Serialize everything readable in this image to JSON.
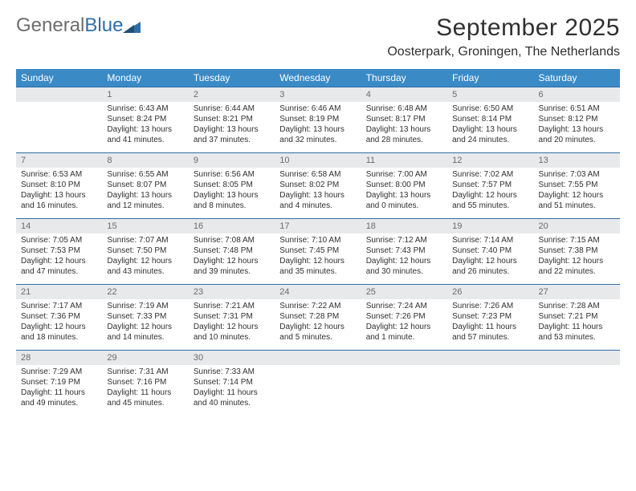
{
  "brand": {
    "name_gray": "General",
    "name_blue": "Blue"
  },
  "title": {
    "month": "September 2025",
    "location": "Oosterpark, Groningen, The Netherlands"
  },
  "colors": {
    "header_bg": "#3a8ac6",
    "header_text": "#ffffff",
    "daynum_bg": "#e7e9eb",
    "daynum_text": "#6b6b6b",
    "body_text": "#303030",
    "week_border": "#2f6fa7",
    "logo_gray": "#6d6d6d",
    "logo_blue": "#2f6fa7"
  },
  "calendar": {
    "day_headers": [
      "Sunday",
      "Monday",
      "Tuesday",
      "Wednesday",
      "Thursday",
      "Friday",
      "Saturday"
    ],
    "weeks": [
      [
        {
          "n": "",
          "sunrise": "",
          "sunset": "",
          "daylight": ""
        },
        {
          "n": "1",
          "sunrise": "Sunrise: 6:43 AM",
          "sunset": "Sunset: 8:24 PM",
          "daylight": "Daylight: 13 hours and 41 minutes."
        },
        {
          "n": "2",
          "sunrise": "Sunrise: 6:44 AM",
          "sunset": "Sunset: 8:21 PM",
          "daylight": "Daylight: 13 hours and 37 minutes."
        },
        {
          "n": "3",
          "sunrise": "Sunrise: 6:46 AM",
          "sunset": "Sunset: 8:19 PM",
          "daylight": "Daylight: 13 hours and 32 minutes."
        },
        {
          "n": "4",
          "sunrise": "Sunrise: 6:48 AM",
          "sunset": "Sunset: 8:17 PM",
          "daylight": "Daylight: 13 hours and 28 minutes."
        },
        {
          "n": "5",
          "sunrise": "Sunrise: 6:50 AM",
          "sunset": "Sunset: 8:14 PM",
          "daylight": "Daylight: 13 hours and 24 minutes."
        },
        {
          "n": "6",
          "sunrise": "Sunrise: 6:51 AM",
          "sunset": "Sunset: 8:12 PM",
          "daylight": "Daylight: 13 hours and 20 minutes."
        }
      ],
      [
        {
          "n": "7",
          "sunrise": "Sunrise: 6:53 AM",
          "sunset": "Sunset: 8:10 PM",
          "daylight": "Daylight: 13 hours and 16 minutes."
        },
        {
          "n": "8",
          "sunrise": "Sunrise: 6:55 AM",
          "sunset": "Sunset: 8:07 PM",
          "daylight": "Daylight: 13 hours and 12 minutes."
        },
        {
          "n": "9",
          "sunrise": "Sunrise: 6:56 AM",
          "sunset": "Sunset: 8:05 PM",
          "daylight": "Daylight: 13 hours and 8 minutes."
        },
        {
          "n": "10",
          "sunrise": "Sunrise: 6:58 AM",
          "sunset": "Sunset: 8:02 PM",
          "daylight": "Daylight: 13 hours and 4 minutes."
        },
        {
          "n": "11",
          "sunrise": "Sunrise: 7:00 AM",
          "sunset": "Sunset: 8:00 PM",
          "daylight": "Daylight: 13 hours and 0 minutes."
        },
        {
          "n": "12",
          "sunrise": "Sunrise: 7:02 AM",
          "sunset": "Sunset: 7:57 PM",
          "daylight": "Daylight: 12 hours and 55 minutes."
        },
        {
          "n": "13",
          "sunrise": "Sunrise: 7:03 AM",
          "sunset": "Sunset: 7:55 PM",
          "daylight": "Daylight: 12 hours and 51 minutes."
        }
      ],
      [
        {
          "n": "14",
          "sunrise": "Sunrise: 7:05 AM",
          "sunset": "Sunset: 7:53 PM",
          "daylight": "Daylight: 12 hours and 47 minutes."
        },
        {
          "n": "15",
          "sunrise": "Sunrise: 7:07 AM",
          "sunset": "Sunset: 7:50 PM",
          "daylight": "Daylight: 12 hours and 43 minutes."
        },
        {
          "n": "16",
          "sunrise": "Sunrise: 7:08 AM",
          "sunset": "Sunset: 7:48 PM",
          "daylight": "Daylight: 12 hours and 39 minutes."
        },
        {
          "n": "17",
          "sunrise": "Sunrise: 7:10 AM",
          "sunset": "Sunset: 7:45 PM",
          "daylight": "Daylight: 12 hours and 35 minutes."
        },
        {
          "n": "18",
          "sunrise": "Sunrise: 7:12 AM",
          "sunset": "Sunset: 7:43 PM",
          "daylight": "Daylight: 12 hours and 30 minutes."
        },
        {
          "n": "19",
          "sunrise": "Sunrise: 7:14 AM",
          "sunset": "Sunset: 7:40 PM",
          "daylight": "Daylight: 12 hours and 26 minutes."
        },
        {
          "n": "20",
          "sunrise": "Sunrise: 7:15 AM",
          "sunset": "Sunset: 7:38 PM",
          "daylight": "Daylight: 12 hours and 22 minutes."
        }
      ],
      [
        {
          "n": "21",
          "sunrise": "Sunrise: 7:17 AM",
          "sunset": "Sunset: 7:36 PM",
          "daylight": "Daylight: 12 hours and 18 minutes."
        },
        {
          "n": "22",
          "sunrise": "Sunrise: 7:19 AM",
          "sunset": "Sunset: 7:33 PM",
          "daylight": "Daylight: 12 hours and 14 minutes."
        },
        {
          "n": "23",
          "sunrise": "Sunrise: 7:21 AM",
          "sunset": "Sunset: 7:31 PM",
          "daylight": "Daylight: 12 hours and 10 minutes."
        },
        {
          "n": "24",
          "sunrise": "Sunrise: 7:22 AM",
          "sunset": "Sunset: 7:28 PM",
          "daylight": "Daylight: 12 hours and 5 minutes."
        },
        {
          "n": "25",
          "sunrise": "Sunrise: 7:24 AM",
          "sunset": "Sunset: 7:26 PM",
          "daylight": "Daylight: 12 hours and 1 minute."
        },
        {
          "n": "26",
          "sunrise": "Sunrise: 7:26 AM",
          "sunset": "Sunset: 7:23 PM",
          "daylight": "Daylight: 11 hours and 57 minutes."
        },
        {
          "n": "27",
          "sunrise": "Sunrise: 7:28 AM",
          "sunset": "Sunset: 7:21 PM",
          "daylight": "Daylight: 11 hours and 53 minutes."
        }
      ],
      [
        {
          "n": "28",
          "sunrise": "Sunrise: 7:29 AM",
          "sunset": "Sunset: 7:19 PM",
          "daylight": "Daylight: 11 hours and 49 minutes."
        },
        {
          "n": "29",
          "sunrise": "Sunrise: 7:31 AM",
          "sunset": "Sunset: 7:16 PM",
          "daylight": "Daylight: 11 hours and 45 minutes."
        },
        {
          "n": "30",
          "sunrise": "Sunrise: 7:33 AM",
          "sunset": "Sunset: 7:14 PM",
          "daylight": "Daylight: 11 hours and 40 minutes."
        },
        {
          "n": "",
          "sunrise": "",
          "sunset": "",
          "daylight": ""
        },
        {
          "n": "",
          "sunrise": "",
          "sunset": "",
          "daylight": ""
        },
        {
          "n": "",
          "sunrise": "",
          "sunset": "",
          "daylight": ""
        },
        {
          "n": "",
          "sunrise": "",
          "sunset": "",
          "daylight": ""
        }
      ]
    ]
  }
}
